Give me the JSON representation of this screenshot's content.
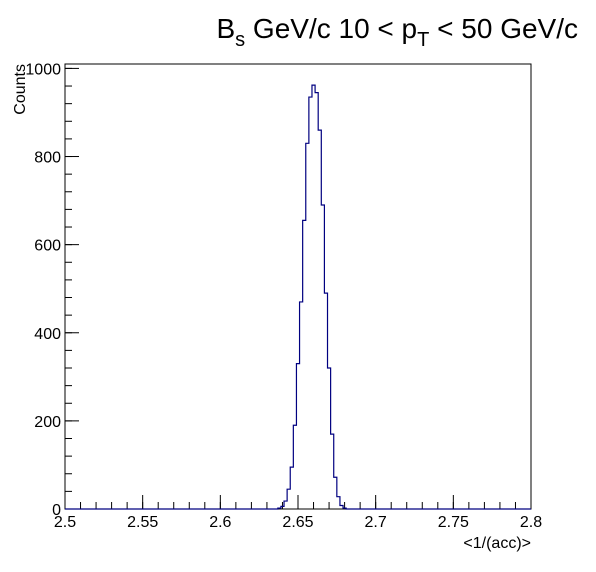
{
  "chart_data": {
    "type": "histogram",
    "title": {
      "main": "B",
      "main_sub": "s",
      "mid": " GeV/c 10 < p",
      "mid_sub": "T",
      "tail": " < 50 GeV/c"
    },
    "xlabel": "<1/(acc)>",
    "ylabel": "Counts",
    "xlim": [
      2.5,
      2.8
    ],
    "ylim": [
      0,
      1010
    ],
    "x_ticks": [
      2.5,
      2.55,
      2.6,
      2.65,
      2.7,
      2.75,
      2.8
    ],
    "x_tick_labels": [
      "2.5",
      "2.55",
      "2.6",
      "2.65",
      "2.7",
      "2.75",
      "2.8"
    ],
    "y_ticks": [
      0,
      200,
      400,
      600,
      800,
      1000
    ],
    "y_tick_labels": [
      "0",
      "200",
      "400",
      "600",
      "800",
      "1000"
    ],
    "line_color": "#000080",
    "bins": {
      "x": [
        2.638,
        2.64,
        2.642,
        2.644,
        2.646,
        2.648,
        2.65,
        2.652,
        2.654,
        2.656,
        2.658,
        2.66,
        2.662,
        2.664,
        2.666,
        2.668,
        2.67,
        2.672,
        2.674,
        2.676,
        2.678,
        2.68
      ],
      "counts": [
        2,
        6,
        18,
        45,
        95,
        190,
        330,
        470,
        655,
        830,
        935,
        962,
        945,
        860,
        690,
        490,
        320,
        170,
        72,
        28,
        8,
        2
      ]
    },
    "grid": false,
    "legend": "none"
  }
}
